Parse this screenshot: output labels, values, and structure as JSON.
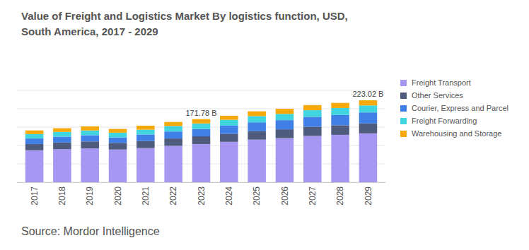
{
  "chart_data": {
    "type": "bar",
    "stacked": true,
    "title": "Value of Freight and Logistics Market By logistics function, USD, South America, 2017 - 2029",
    "source": "Source: Mordor Intelligence",
    "categories": [
      "2017",
      "2018",
      "2019",
      "2020",
      "2021",
      "2022",
      "2023",
      "2024",
      "2025",
      "2026",
      "2027",
      "2028",
      "2029"
    ],
    "series": [
      {
        "name": "Freight Transport",
        "color": "#a597f2",
        "values": [
          87,
          90,
          92,
          89,
          93,
          99,
          104,
          110,
          116,
          120,
          126,
          129,
          133
        ]
      },
      {
        "name": "Other Services",
        "color": "#4e5b7c",
        "values": [
          17,
          18,
          19,
          18,
          19,
          20,
          21,
          22,
          23,
          24,
          25,
          26,
          27
        ]
      },
      {
        "name": "Courier, Express and Parcel",
        "color": "#3f7fe6",
        "values": [
          15,
          16,
          17,
          15,
          18,
          19,
          20,
          22,
          24,
          25,
          27,
          28,
          30
        ]
      },
      {
        "name": "Freight Forwarding",
        "color": "#41d6df",
        "values": [
          12,
          13,
          13,
          13,
          13,
          15,
          15,
          16,
          17,
          17,
          18,
          19,
          19
        ]
      },
      {
        "name": "Warehousing and Storage",
        "color": "#f5a90a",
        "values": [
          10,
          10,
          11,
          10,
          11,
          11,
          11.78,
          11,
          13,
          14,
          14,
          14,
          14.02
        ]
      }
    ],
    "annotations": [
      {
        "category": "2023",
        "value": 171.78,
        "label": "171.78 B"
      },
      {
        "category": "2029",
        "value": 223.02,
        "label": "223.02 B"
      }
    ],
    "ylim": [
      0,
      250
    ],
    "yticks": [
      0,
      50,
      100,
      150,
      200,
      250
    ],
    "grid": true,
    "tick_labels": "x",
    "legend": "right"
  }
}
